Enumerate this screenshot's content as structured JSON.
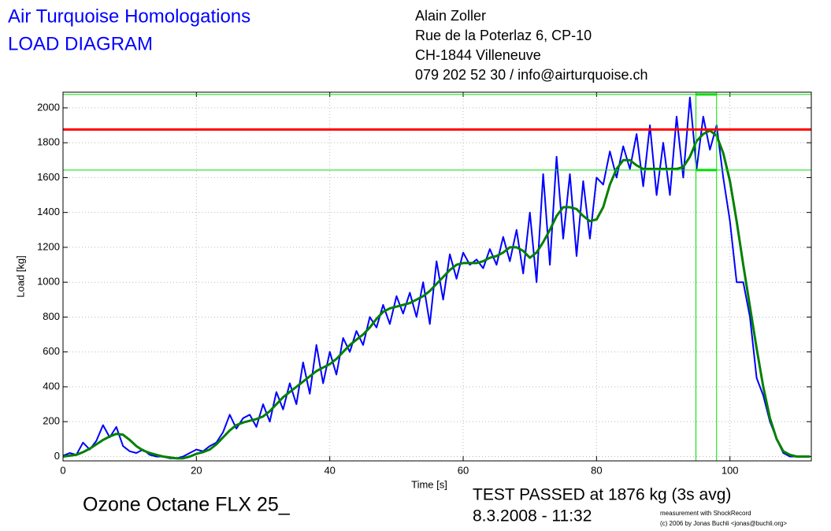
{
  "header": {
    "title": "Air Turquoise Homologations",
    "subtitle": "LOAD DIAGRAM",
    "address": [
      "Alain Zoller",
      "Rue de la Poterlaz 6, CP-10",
      "CH-1844 Villeneuve",
      "079 202 52 30 / info@airturquoise.ch"
    ]
  },
  "footer": {
    "model": "Ozone Octane FLX 25_",
    "result": "TEST PASSED at 1876 kg (3s avg)",
    "date": "8.3.2008 - 11:32",
    "credit1": "measurement with ShockRecord",
    "credit2": "(c) 2006 by Jonas Buchli <jonas@buchli.org>"
  },
  "chart_data": {
    "type": "line",
    "xlabel": "Time [s]",
    "ylabel": "Load [kg]",
    "xlim": [
      0,
      112.2
    ],
    "ylim": [
      -25,
      2090
    ],
    "xticks": [
      0,
      20,
      40,
      60,
      80,
      100
    ],
    "yticks": [
      0,
      200,
      400,
      600,
      800,
      1000,
      1200,
      1400,
      1600,
      1800,
      2000
    ],
    "grid": true,
    "x": [
      0,
      1,
      2,
      3,
      4,
      5,
      6,
      7,
      8,
      9,
      10,
      11,
      12,
      13,
      14,
      15,
      16,
      17,
      18,
      19,
      20,
      21,
      22,
      23,
      24,
      25,
      26,
      27,
      28,
      29,
      30,
      31,
      32,
      33,
      34,
      35,
      36,
      37,
      38,
      39,
      40,
      41,
      42,
      43,
      44,
      45,
      46,
      47,
      48,
      49,
      50,
      51,
      52,
      53,
      54,
      55,
      56,
      57,
      58,
      59,
      60,
      61,
      62,
      63,
      64,
      65,
      66,
      67,
      68,
      69,
      70,
      71,
      72,
      73,
      74,
      75,
      76,
      77,
      78,
      79,
      80,
      81,
      82,
      83,
      84,
      85,
      86,
      87,
      88,
      89,
      90,
      91,
      92,
      93,
      94,
      95,
      96,
      97,
      98,
      99,
      100,
      101,
      102,
      103,
      104,
      105,
      106,
      107,
      108,
      109,
      110,
      111,
      112
    ],
    "series": [
      {
        "color": "#0000ff",
        "width": 2,
        "values": [
          5,
          20,
          10,
          80,
          40,
          90,
          180,
          110,
          170,
          60,
          30,
          20,
          40,
          10,
          0,
          0,
          -10,
          -10,
          0,
          20,
          40,
          30,
          60,
          80,
          140,
          240,
          160,
          220,
          240,
          170,
          300,
          200,
          370,
          270,
          420,
          300,
          540,
          360,
          640,
          420,
          600,
          470,
          680,
          600,
          720,
          640,
          800,
          740,
          870,
          760,
          920,
          820,
          940,
          800,
          1000,
          760,
          1120,
          900,
          1160,
          1020,
          1170,
          1100,
          1130,
          1080,
          1190,
          1100,
          1260,
          1120,
          1300,
          1050,
          1400,
          1000,
          1620,
          1100,
          1720,
          1250,
          1620,
          1150,
          1580,
          1250,
          1600,
          1560,
          1750,
          1600,
          1780,
          1650,
          1850,
          1550,
          1900,
          1500,
          1800,
          1500,
          1950,
          1600,
          2060,
          1650,
          1950,
          1760,
          1900,
          1600,
          1350,
          1000,
          1000,
          800,
          450,
          350,
          200,
          100,
          20,
          0,
          0,
          0,
          0
        ]
      },
      {
        "color": "#008000",
        "width": 3,
        "values": [
          0,
          5,
          10,
          25,
          45,
          70,
          95,
          115,
          130,
          125,
          95,
          60,
          35,
          20,
          10,
          0,
          -5,
          -10,
          -10,
          0,
          15,
          25,
          40,
          70,
          110,
          150,
          180,
          195,
          205,
          215,
          230,
          260,
          300,
          340,
          370,
          400,
          430,
          460,
          490,
          510,
          530,
          560,
          600,
          640,
          670,
          700,
          740,
          790,
          830,
          850,
          860,
          870,
          880,
          900,
          920,
          950,
          990,
          1030,
          1070,
          1100,
          1110,
          1110,
          1110,
          1120,
          1140,
          1150,
          1170,
          1200,
          1200,
          1180,
          1140,
          1170,
          1230,
          1300,
          1380,
          1430,
          1430,
          1420,
          1380,
          1350,
          1360,
          1430,
          1560,
          1650,
          1700,
          1700,
          1670,
          1650,
          1650,
          1650,
          1650,
          1650,
          1650,
          1660,
          1720,
          1810,
          1850,
          1870,
          1840,
          1740,
          1580,
          1350,
          1100,
          860,
          620,
          400,
          220,
          100,
          30,
          10,
          0,
          0,
          0
        ]
      }
    ],
    "reference_lines": [
      {
        "axis": "y",
        "value": 2077,
        "color": "#00e000"
      },
      {
        "axis": "y",
        "value": 1643,
        "color": "#00e000"
      },
      {
        "axis": "x",
        "value": 94.9,
        "color": "#00e000"
      },
      {
        "axis": "x",
        "value": 98.0,
        "color": "#00e000"
      },
      {
        "axis": "y",
        "value": 1876,
        "color": "#ff0000"
      }
    ]
  }
}
